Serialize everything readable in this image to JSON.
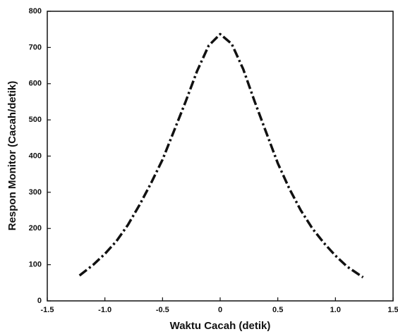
{
  "chart_data": {
    "type": "line",
    "x_label": "Waktu Cacah (detik)",
    "y_label": "Respon Monitor (Cacah/detik)",
    "x": [
      -1.22,
      -1.1,
      -1.0,
      -0.9,
      -0.8,
      -0.7,
      -0.6,
      -0.5,
      -0.4,
      -0.3,
      -0.2,
      -0.1,
      0,
      0.1,
      0.2,
      0.3,
      0.4,
      0.5,
      0.6,
      0.7,
      0.8,
      0.9,
      1.0,
      1.1,
      1.24
    ],
    "values": [
      70,
      100,
      130,
      165,
      210,
      265,
      325,
      390,
      470,
      550,
      635,
      705,
      737,
      710,
      640,
      550,
      465,
      380,
      310,
      250,
      200,
      160,
      125,
      95,
      65
    ],
    "color": "#111111",
    "xlim": [
      -1.5,
      1.5
    ],
    "xticks": [
      -1.5,
      {
        "value": -1,
        "label": "-1.0"
      },
      -0.5,
      0,
      0.5,
      {
        "value": 1,
        "label": "1.0"
      },
      1.5
    ],
    "ylim": [
      0,
      800
    ],
    "yticks": [
      0,
      100,
      200,
      300,
      400,
      500,
      600,
      700,
      800
    ]
  }
}
